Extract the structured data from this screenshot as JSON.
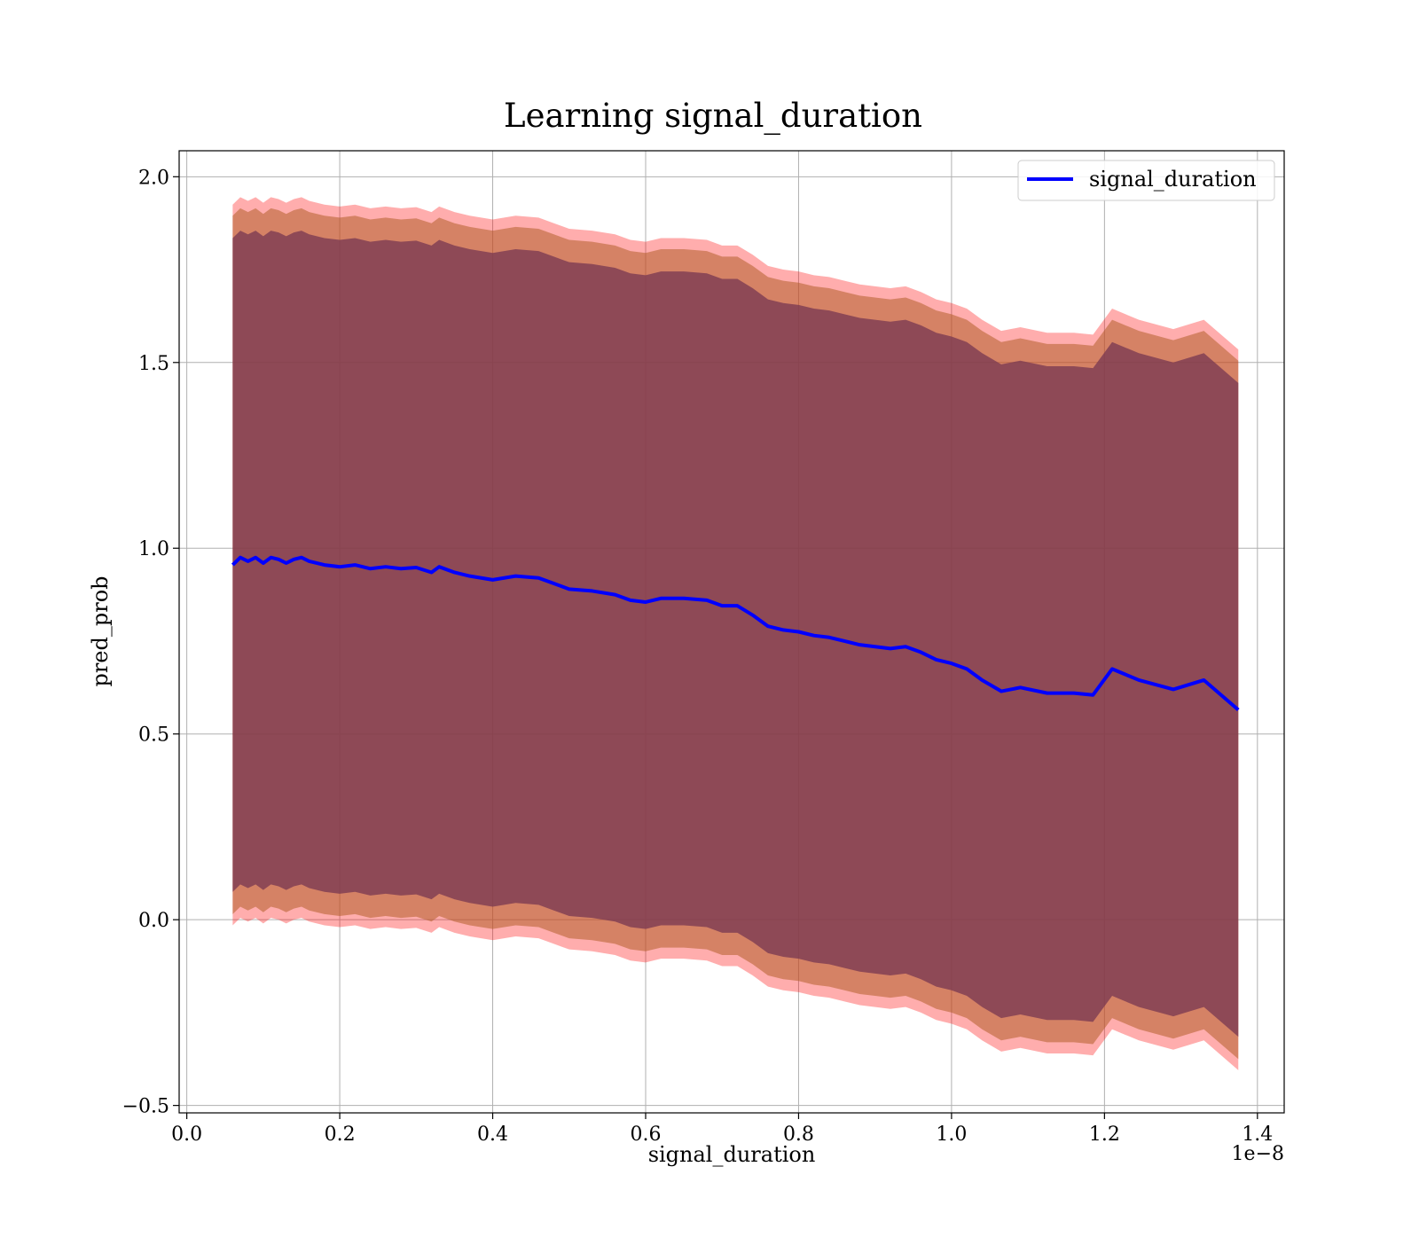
{
  "chart_data": {
    "type": "line",
    "title": "Learning signal_duration",
    "xlabel": "signal_duration",
    "ylabel": "pred_prob",
    "x_offset_label": "1e−8",
    "xlim": [
      -0.01,
      1.435
    ],
    "ylim": [
      -0.52,
      2.07
    ],
    "xticks": [
      0.0,
      0.2,
      0.4,
      0.6,
      0.8,
      1.0,
      1.2,
      1.4
    ],
    "xtick_labels": [
      "0.0",
      "0.2",
      "0.4",
      "0.6",
      "0.8",
      "1.0",
      "1.2",
      "1.4"
    ],
    "yticks": [
      -0.5,
      0.0,
      0.5,
      1.0,
      1.5,
      2.0
    ],
    "ytick_labels": [
      "−0.5",
      "0.0",
      "0.5",
      "1.0",
      "1.5",
      "2.0"
    ],
    "grid": true,
    "legend_position": "top-right",
    "colors": {
      "line": "#0000ff",
      "outer_band": "#ff0000",
      "middle_band": "#b25f2a",
      "inner_band": "#7a3a52"
    },
    "series": [
      {
        "name": "signal_duration",
        "x": [
          0.06,
          0.07,
          0.08,
          0.09,
          0.1,
          0.11,
          0.12,
          0.13,
          0.14,
          0.15,
          0.16,
          0.18,
          0.2,
          0.22,
          0.24,
          0.26,
          0.28,
          0.3,
          0.32,
          0.33,
          0.35,
          0.37,
          0.4,
          0.43,
          0.46,
          0.48,
          0.5,
          0.53,
          0.56,
          0.58,
          0.6,
          0.62,
          0.65,
          0.68,
          0.7,
          0.72,
          0.74,
          0.76,
          0.78,
          0.8,
          0.82,
          0.84,
          0.86,
          0.88,
          0.9,
          0.92,
          0.94,
          0.96,
          0.98,
          1.0,
          1.02,
          1.04,
          1.065,
          1.09,
          1.125,
          1.16,
          1.185,
          1.21,
          1.245,
          1.29,
          1.33,
          1.375
        ],
        "y": [
          0.955,
          0.975,
          0.965,
          0.975,
          0.96,
          0.975,
          0.97,
          0.96,
          0.97,
          0.975,
          0.965,
          0.955,
          0.95,
          0.955,
          0.945,
          0.95,
          0.945,
          0.948,
          0.935,
          0.95,
          0.935,
          0.925,
          0.915,
          0.925,
          0.92,
          0.905,
          0.89,
          0.885,
          0.875,
          0.86,
          0.855,
          0.865,
          0.865,
          0.86,
          0.845,
          0.845,
          0.82,
          0.79,
          0.78,
          0.775,
          0.765,
          0.76,
          0.75,
          0.74,
          0.735,
          0.73,
          0.735,
          0.72,
          0.7,
          0.69,
          0.675,
          0.645,
          0.615,
          0.625,
          0.61,
          0.61,
          0.605,
          0.675,
          0.645,
          0.62,
          0.645,
          0.565
        ],
        "inner_band_halfwidth": 0.88,
        "middle_band_halfwidth": 0.94,
        "outer_band_halfwidth": 0.97
      }
    ]
  }
}
